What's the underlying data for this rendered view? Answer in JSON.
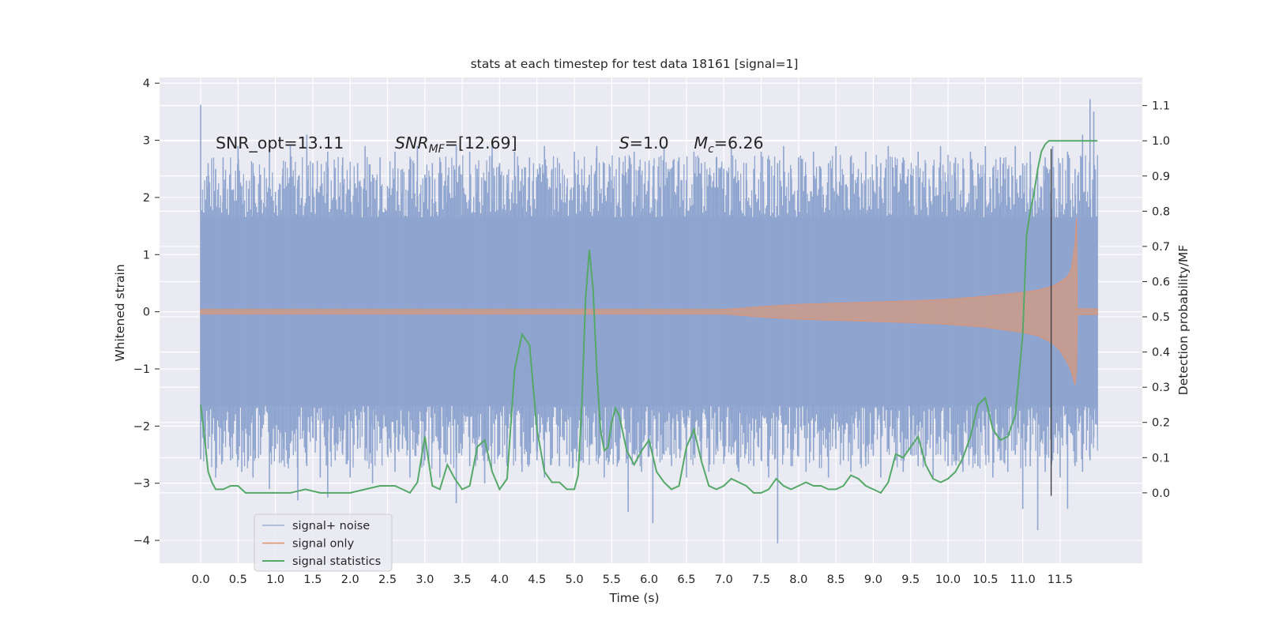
{
  "chart_data": {
    "type": "line",
    "title": "stats at each timestep for test data 18161 [signal=1]",
    "xlabel": "Time (s)",
    "ylabel": "Whitened strain",
    "y2label": "Detection probability/MF",
    "xlim": [
      -0.55,
      12.6
    ],
    "ylim": [
      -4.4,
      4.1
    ],
    "y2lim": [
      -0.2,
      1.18
    ],
    "x_ticks": [
      0.0,
      0.5,
      1.0,
      1.5,
      2.0,
      2.5,
      3.0,
      3.5,
      4.0,
      4.5,
      5.0,
      5.5,
      6.0,
      6.5,
      7.0,
      7.5,
      8.0,
      8.5,
      9.0,
      9.5,
      10.0,
      10.5,
      11.0,
      11.5
    ],
    "x_tick_labels": [
      "0.0",
      "0.5",
      "1.0",
      "1.5",
      "2.0",
      "2.5",
      "3.0",
      "3.5",
      "4.0",
      "4.5",
      "5.0",
      "5.5",
      "6.0",
      "6.5",
      "7.0",
      "7.5",
      "8.0",
      "8.5",
      "9.0",
      "9.5",
      "10.0",
      "10.5",
      "11.0",
      "11.5"
    ],
    "y_ticks": [
      -4,
      -3,
      -2,
      -1,
      0,
      1,
      2,
      3,
      4
    ],
    "y_tick_labels": [
      "−4",
      "−3",
      "−2",
      "−1",
      "0",
      "1",
      "2",
      "3",
      "4"
    ],
    "y2_ticks": [
      0.0,
      0.1,
      0.2,
      0.3,
      0.4,
      0.5,
      0.6,
      0.7,
      0.8,
      0.9,
      1.0,
      1.1
    ],
    "y2_tick_labels": [
      "0.0",
      "0.1",
      "0.2",
      "0.3",
      "0.4",
      "0.5",
      "0.6",
      "0.7",
      "0.8",
      "0.9",
      "1.0",
      "1.1"
    ],
    "grid": true,
    "legend_position": "lower-left",
    "annotations": [
      {
        "text": "SNR_opt=13.11",
        "x": 0.2,
        "y": 2.95
      },
      {
        "text": "SNR",
        "sub": "MF",
        "suffix": "=[12.69]",
        "x": 2.6,
        "y": 2.95
      },
      {
        "text": "S",
        "suffix": "=1.0",
        "x": 5.6,
        "y": 2.95
      },
      {
        "text": "M",
        "sub": "c",
        "suffix": "=6.26",
        "x": 6.6,
        "y": 2.95
      }
    ],
    "vline": {
      "x": 11.38,
      "ymin": -3.22,
      "ymax": 2.85
    },
    "series": [
      {
        "name": "signal+ noise",
        "color": "#8fa5cf",
        "x_range": [
          0.0,
          12.0
        ],
        "core_amplitude": 1.65,
        "spikes": [
          [
            0.0,
            3.62,
            -2.58
          ],
          [
            0.1,
            2.6,
            -2.4
          ],
          [
            0.2,
            2.5,
            -2.9
          ],
          [
            0.3,
            2.7,
            -2.3
          ],
          [
            0.4,
            2.4,
            -2.6
          ],
          [
            0.5,
            2.9,
            -2.1
          ],
          [
            0.55,
            2.2,
            -2.8
          ],
          [
            0.7,
            2.6,
            -2.9
          ],
          [
            0.8,
            2.4,
            -2.5
          ],
          [
            0.92,
            2.8,
            -3.1
          ],
          [
            1.0,
            2.1,
            -2.4
          ],
          [
            1.1,
            2.5,
            -2.6
          ],
          [
            1.2,
            2.9,
            -2.3
          ],
          [
            1.3,
            2.3,
            -3.3
          ],
          [
            1.42,
            3.1,
            -2.7
          ],
          [
            1.5,
            2.6,
            -2.2
          ],
          [
            1.6,
            2.2,
            -2.9
          ],
          [
            1.7,
            2.8,
            -3.25
          ],
          [
            1.8,
            2.5,
            -2.6
          ],
          [
            1.9,
            2.7,
            -2.5
          ],
          [
            2.0,
            2.3,
            -2.9
          ],
          [
            2.1,
            2.6,
            -2.4
          ],
          [
            2.2,
            2.9,
            -2.6
          ],
          [
            2.3,
            2.4,
            -3.0
          ],
          [
            2.4,
            2.7,
            -2.3
          ],
          [
            2.5,
            2.2,
            -2.5
          ],
          [
            2.6,
            2.8,
            -2.8
          ],
          [
            2.7,
            2.5,
            -2.4
          ],
          [
            2.8,
            2.3,
            -2.9
          ],
          [
            2.9,
            2.9,
            -2.2
          ],
          [
            3.0,
            2.4,
            -2.6
          ],
          [
            3.1,
            2.6,
            -2.3
          ],
          [
            3.2,
            2.7,
            -2.9
          ],
          [
            3.3,
            2.2,
            -2.5
          ],
          [
            3.42,
            2.9,
            -3.35
          ],
          [
            3.5,
            2.4,
            -2.4
          ],
          [
            3.6,
            2.8,
            -2.7
          ],
          [
            3.7,
            2.5,
            -2.6
          ],
          [
            3.8,
            2.3,
            -3.0
          ],
          [
            3.9,
            2.9,
            -2.3
          ],
          [
            4.0,
            2.6,
            -2.5
          ],
          [
            4.1,
            2.4,
            -2.7
          ],
          [
            4.2,
            2.8,
            -2.4
          ],
          [
            4.3,
            2.5,
            -2.8
          ],
          [
            4.4,
            2.7,
            -2.3
          ],
          [
            4.5,
            2.3,
            -2.6
          ],
          [
            4.6,
            2.9,
            -2.9
          ],
          [
            4.7,
            2.5,
            -2.4
          ],
          [
            4.8,
            2.6,
            -2.7
          ],
          [
            4.9,
            2.2,
            -2.5
          ],
          [
            5.0,
            2.8,
            -2.4
          ],
          [
            5.1,
            2.5,
            -2.6
          ],
          [
            5.2,
            2.4,
            -2.3
          ],
          [
            5.3,
            2.9,
            -2.5
          ],
          [
            5.4,
            2.6,
            -2.9
          ],
          [
            5.5,
            2.3,
            -2.4
          ],
          [
            5.6,
            2.7,
            -2.6
          ],
          [
            5.72,
            2.5,
            -3.5
          ],
          [
            5.8,
            2.8,
            -2.5
          ],
          [
            5.9,
            2.4,
            -2.8
          ],
          [
            6.0,
            2.6,
            -2.4
          ],
          [
            6.05,
            2.2,
            -3.7
          ],
          [
            6.2,
            2.9,
            -2.5
          ],
          [
            6.3,
            2.5,
            -2.7
          ],
          [
            6.4,
            2.7,
            -2.4
          ],
          [
            6.5,
            2.3,
            -2.9
          ],
          [
            6.6,
            2.8,
            -2.5
          ],
          [
            6.7,
            2.6,
            -2.6
          ],
          [
            6.8,
            2.4,
            -2.8
          ],
          [
            6.9,
            2.7,
            -2.4
          ],
          [
            7.0,
            2.5,
            -2.6
          ],
          [
            7.1,
            2.9,
            -2.5
          ],
          [
            7.2,
            2.3,
            -2.8
          ],
          [
            7.3,
            2.6,
            -2.4
          ],
          [
            7.4,
            2.5,
            -2.7
          ],
          [
            7.5,
            2.8,
            -2.6
          ],
          [
            7.6,
            2.4,
            -2.9
          ],
          [
            7.72,
            2.6,
            -4.05
          ],
          [
            7.8,
            2.9,
            -2.5
          ],
          [
            7.9,
            2.5,
            -2.7
          ],
          [
            8.0,
            2.7,
            -2.4
          ],
          [
            8.1,
            2.4,
            -2.8
          ],
          [
            8.2,
            2.8,
            -2.6
          ],
          [
            8.3,
            2.5,
            -2.5
          ],
          [
            8.4,
            2.6,
            -2.9
          ],
          [
            8.5,
            2.9,
            -2.4
          ],
          [
            8.6,
            2.4,
            -2.6
          ],
          [
            8.7,
            2.7,
            -2.8
          ],
          [
            8.8,
            2.5,
            -2.4
          ],
          [
            8.9,
            2.8,
            -2.7
          ],
          [
            9.0,
            2.3,
            -2.5
          ],
          [
            9.1,
            2.6,
            -2.9
          ],
          [
            9.2,
            2.9,
            -2.4
          ],
          [
            9.3,
            2.5,
            -2.6
          ],
          [
            9.4,
            2.7,
            -2.8
          ],
          [
            9.5,
            2.4,
            -2.5
          ],
          [
            9.6,
            2.8,
            -2.7
          ],
          [
            9.7,
            2.6,
            -2.4
          ],
          [
            9.8,
            2.5,
            -2.9
          ],
          [
            9.9,
            2.9,
            -2.5
          ],
          [
            10.0,
            2.4,
            -2.7
          ],
          [
            10.1,
            2.7,
            -2.6
          ],
          [
            10.2,
            2.5,
            -2.8
          ],
          [
            10.3,
            2.8,
            -2.4
          ],
          [
            10.4,
            2.6,
            -2.7
          ],
          [
            10.5,
            2.9,
            -2.5
          ],
          [
            10.6,
            2.4,
            -2.9
          ],
          [
            10.7,
            2.7,
            -2.6
          ],
          [
            10.8,
            2.5,
            -2.8
          ],
          [
            10.9,
            2.9,
            -2.5
          ],
          [
            11.0,
            2.6,
            -3.45
          ],
          [
            11.1,
            2.8,
            -2.7
          ],
          [
            11.2,
            2.5,
            -3.82
          ],
          [
            11.3,
            2.7,
            -2.8
          ],
          [
            11.4,
            2.9,
            -2.6
          ],
          [
            11.5,
            2.6,
            -2.9
          ],
          [
            11.6,
            2.8,
            -3.45
          ],
          [
            11.7,
            2.5,
            -2.7
          ],
          [
            11.8,
            3.1,
            -2.8
          ],
          [
            11.9,
            3.72,
            -2.6
          ],
          [
            11.95,
            3.5,
            -2.2
          ]
        ]
      },
      {
        "name": "signal only",
        "color": "#dd8452",
        "x": [
          0.0,
          7.0,
          7.5,
          8.0,
          8.5,
          9.0,
          9.5,
          10.0,
          10.5,
          11.0,
          11.2,
          11.4,
          11.5,
          11.6,
          11.65,
          11.7,
          11.72,
          11.73,
          12.0
        ],
        "envelope": [
          0.04,
          0.04,
          0.09,
          0.13,
          0.15,
          0.17,
          0.19,
          0.22,
          0.27,
          0.34,
          0.38,
          0.45,
          0.52,
          0.62,
          0.75,
          1.2,
          1.65,
          0.05,
          0.05
        ],
        "envelope_low": [
          -0.04,
          -0.04,
          -0.09,
          -0.13,
          -0.15,
          -0.17,
          -0.19,
          -0.22,
          -0.27,
          -0.36,
          -0.42,
          -0.55,
          -0.68,
          -0.9,
          -1.05,
          -1.28,
          -1.0,
          -0.05,
          -0.05
        ]
      },
      {
        "name": "signal statistics",
        "color": "#55a868",
        "axis": "right",
        "x": [
          0.0,
          0.05,
          0.1,
          0.15,
          0.2,
          0.3,
          0.4,
          0.5,
          0.6,
          0.8,
          1.0,
          1.2,
          1.4,
          1.6,
          1.8,
          2.0,
          2.2,
          2.4,
          2.5,
          2.6,
          2.7,
          2.8,
          2.9,
          3.0,
          3.1,
          3.2,
          3.3,
          3.4,
          3.5,
          3.6,
          3.7,
          3.8,
          3.9,
          4.0,
          4.1,
          4.2,
          4.3,
          4.4,
          4.5,
          4.6,
          4.7,
          4.8,
          4.9,
          5.0,
          5.05,
          5.1,
          5.15,
          5.2,
          5.25,
          5.3,
          5.35,
          5.4,
          5.45,
          5.5,
          5.55,
          5.6,
          5.7,
          5.8,
          5.9,
          6.0,
          6.1,
          6.2,
          6.3,
          6.4,
          6.5,
          6.6,
          6.7,
          6.8,
          6.9,
          7.0,
          7.1,
          7.2,
          7.3,
          7.4,
          7.5,
          7.6,
          7.7,
          7.8,
          7.9,
          8.0,
          8.1,
          8.2,
          8.3,
          8.4,
          8.5,
          8.6,
          8.7,
          8.8,
          8.9,
          9.0,
          9.1,
          9.2,
          9.3,
          9.4,
          9.5,
          9.6,
          9.7,
          9.8,
          9.9,
          10.0,
          10.1,
          10.2,
          10.3,
          10.4,
          10.5,
          10.6,
          10.7,
          10.8,
          10.9,
          11.0,
          11.05,
          11.1,
          11.15,
          11.2,
          11.25,
          11.3,
          11.35,
          11.4,
          11.45,
          11.5,
          11.6,
          11.7,
          11.8,
          11.9,
          12.0
        ],
        "y": [
          0.25,
          0.16,
          0.06,
          0.03,
          0.01,
          0.01,
          0.02,
          0.02,
          0.0,
          0.0,
          0.0,
          0.0,
          0.01,
          0.0,
          0.0,
          0.0,
          0.01,
          0.02,
          0.02,
          0.02,
          0.01,
          0.0,
          0.03,
          0.16,
          0.02,
          0.01,
          0.08,
          0.04,
          0.01,
          0.02,
          0.13,
          0.15,
          0.06,
          0.01,
          0.04,
          0.35,
          0.45,
          0.42,
          0.18,
          0.06,
          0.03,
          0.03,
          0.01,
          0.01,
          0.05,
          0.25,
          0.55,
          0.69,
          0.58,
          0.35,
          0.18,
          0.12,
          0.13,
          0.2,
          0.24,
          0.22,
          0.12,
          0.08,
          0.12,
          0.15,
          0.06,
          0.03,
          0.01,
          0.02,
          0.13,
          0.18,
          0.09,
          0.02,
          0.01,
          0.02,
          0.04,
          0.03,
          0.02,
          0.0,
          0.0,
          0.01,
          0.04,
          0.02,
          0.01,
          0.02,
          0.03,
          0.02,
          0.02,
          0.01,
          0.01,
          0.02,
          0.05,
          0.04,
          0.02,
          0.01,
          0.0,
          0.03,
          0.11,
          0.1,
          0.13,
          0.16,
          0.08,
          0.04,
          0.03,
          0.04,
          0.06,
          0.1,
          0.16,
          0.25,
          0.27,
          0.18,
          0.15,
          0.16,
          0.22,
          0.45,
          0.73,
          0.8,
          0.85,
          0.92,
          0.97,
          0.99,
          1.0,
          1.0,
          1.0,
          1.0,
          1.0,
          1.0,
          1.0,
          1.0,
          1.0
        ]
      }
    ]
  }
}
